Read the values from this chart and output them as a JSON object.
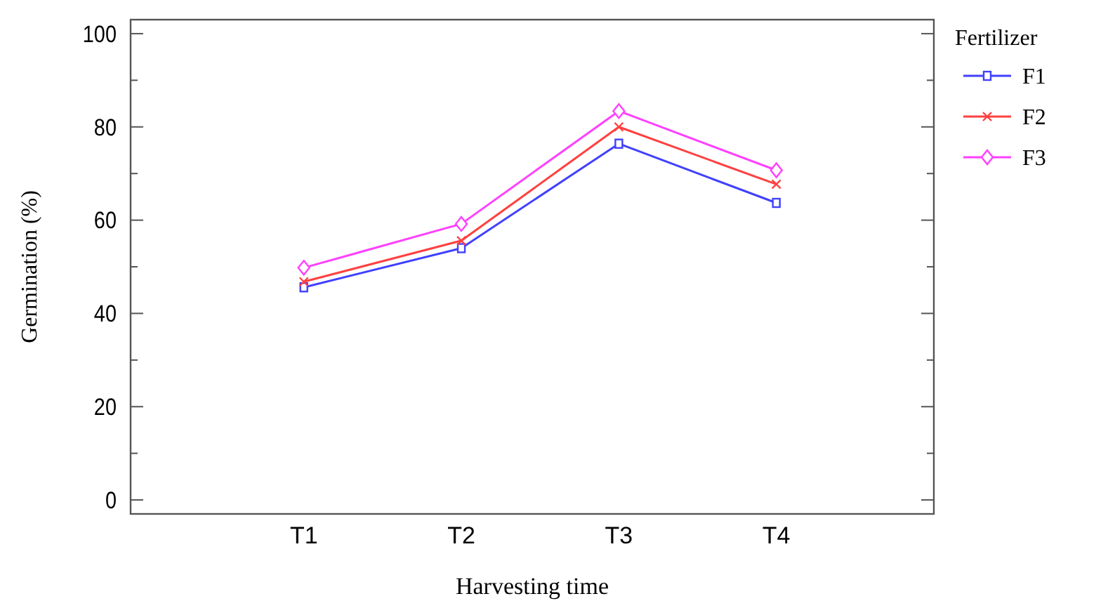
{
  "chart_data": {
    "type": "line",
    "xlabel": "Harvesting time",
    "ylabel": "Germination (%)",
    "legend_title": "Fertilizer",
    "categories": [
      "T1",
      "T2",
      "T3",
      "T4"
    ],
    "series": [
      {
        "name": "F1",
        "color": "#4040ff",
        "marker": "square",
        "values": [
          45.6,
          54,
          76.4,
          63.7
        ]
      },
      {
        "name": "F2",
        "color": "#ff4040",
        "marker": "cross",
        "values": [
          46.8,
          55.6,
          80,
          67.7
        ]
      },
      {
        "name": "F3",
        "color": "#ff40ff",
        "marker": "diamond",
        "values": [
          49.8,
          59.2,
          83.4,
          70.7
        ]
      }
    ],
    "ylim": [
      -3,
      103
    ],
    "yticks": [
      0,
      {
        "value": 10,
        "label": null
      },
      20,
      {
        "value": 30,
        "label": null
      },
      40,
      {
        "value": 50,
        "label": null
      },
      60,
      {
        "value": 70,
        "label": null
      },
      80,
      {
        "value": 90,
        "label": null
      },
      100
    ],
    "grid": false,
    "legend": "top right"
  }
}
